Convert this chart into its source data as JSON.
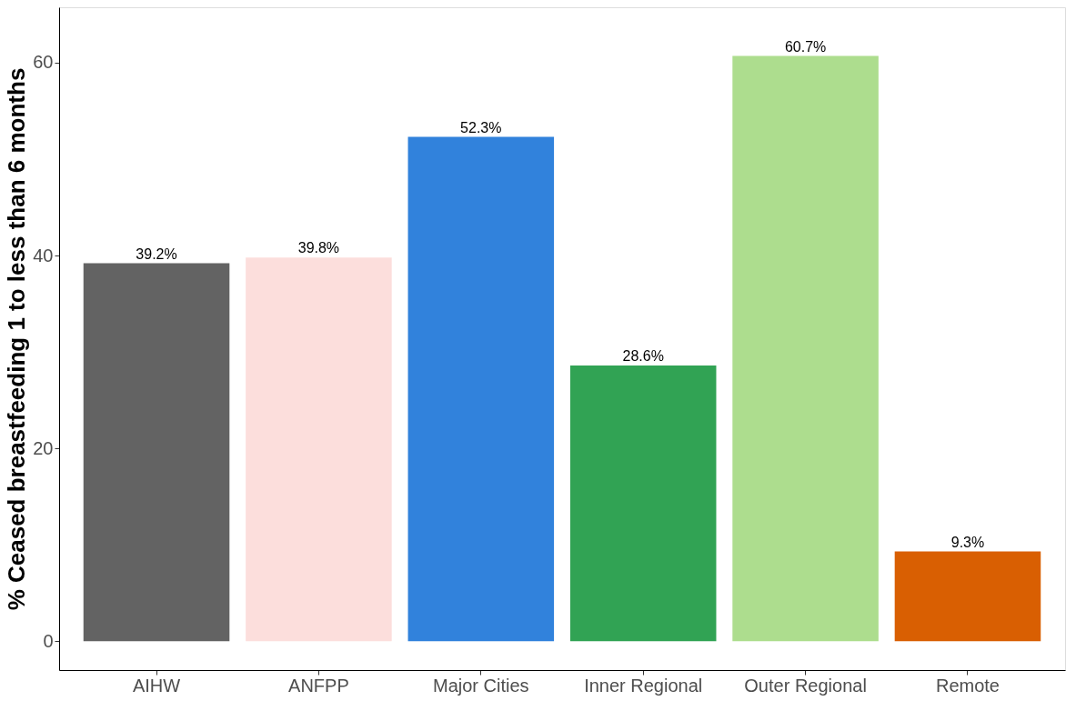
{
  "chart_data": {
    "type": "bar",
    "ylabel": "% Ceased breastfeeding 1 to less than 6 months",
    "categories": [
      "AIHW",
      "ANFPP",
      "Major Cities",
      "Inner Regional",
      "Outer Regional",
      "Remote"
    ],
    "values": [
      39.2,
      39.8,
      52.3,
      28.6,
      60.7,
      9.3
    ],
    "colors": [
      "#636363",
      "#fcdedc",
      "#3182dc",
      "#31a354",
      "#addd8e",
      "#d95f02"
    ],
    "value_labels": [
      "39.2%",
      "39.8%",
      "52.3%",
      "28.6%",
      "60.7%",
      "9.3%"
    ],
    "ylim": [
      -3,
      65.75
    ],
    "yticks": [
      0,
      20,
      40,
      60
    ],
    "grid": false,
    "legend": false
  }
}
